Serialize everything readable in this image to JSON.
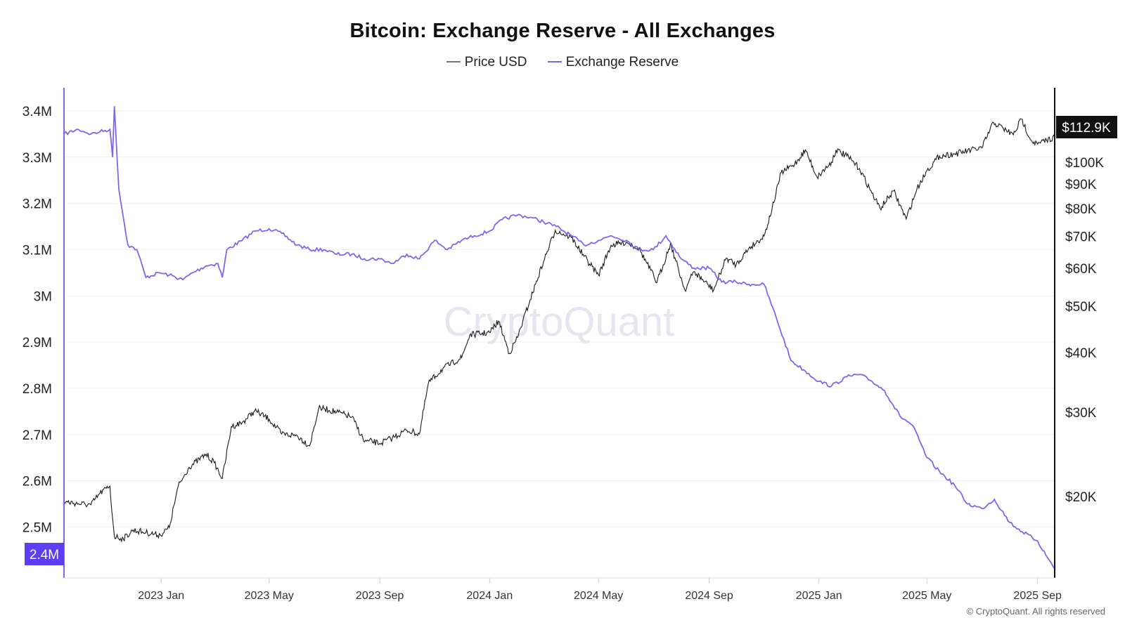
{
  "chart_data": {
    "type": "line",
    "title": "Bitcoin: Exchange Reserve - All Exchanges",
    "legend": [
      {
        "name": "Price USD",
        "color": "#555555"
      },
      {
        "name": "Exchange Reserve",
        "color": "#7b68ee"
      }
    ],
    "legend_placement": "top-center",
    "grid": true,
    "x_axis": {
      "type": "date",
      "ticks": [
        "2023 Jan",
        "2023 May",
        "2023 Sep",
        "2024 Jan",
        "2024 May",
        "2024 Sep",
        "2025 Jan",
        "2025 May",
        "2025 Sep"
      ],
      "range": [
        "2022-09-15",
        "2025-09-20"
      ]
    },
    "y_left": {
      "label": "",
      "ticks": [
        "3.4M",
        "3.3M",
        "3.2M",
        "3.1M",
        "3M",
        "2.9M",
        "2.8M",
        "2.7M",
        "2.6M",
        "2.5M"
      ],
      "range": [
        2390000,
        3450000
      ],
      "current_label": "2.4M"
    },
    "y_right": {
      "label": "",
      "scale": "log",
      "ticks": [
        "$100K",
        "$90K",
        "$80K",
        "$70K",
        "$60K",
        "$50K",
        "$40K",
        "$30K",
        "$20K"
      ],
      "current_label": "$112.9K"
    },
    "series": [
      {
        "name": "Exchange Reserve",
        "color": "#7b68ee",
        "axis": "left",
        "x": [
          "2022-09-15",
          "2022-10-01",
          "2022-10-15",
          "2022-10-25",
          "2022-11-05",
          "2022-11-08",
          "2022-11-10",
          "2022-11-15",
          "2022-11-25",
          "2022-12-05",
          "2022-12-15",
          "2022-12-30",
          "2023-01-10",
          "2023-01-25",
          "2023-02-05",
          "2023-02-20",
          "2023-03-05",
          "2023-03-10",
          "2023-03-15",
          "2023-04-01",
          "2023-04-15",
          "2023-05-01",
          "2023-05-15",
          "2023-06-01",
          "2023-06-15",
          "2023-07-01",
          "2023-07-15",
          "2023-08-01",
          "2023-08-15",
          "2023-09-01",
          "2023-09-15",
          "2023-10-01",
          "2023-10-15",
          "2023-11-01",
          "2023-11-15",
          "2023-12-01",
          "2023-12-15",
          "2024-01-01",
          "2024-01-15",
          "2024-02-01",
          "2024-02-15",
          "2024-03-01",
          "2024-03-15",
          "2024-04-01",
          "2024-04-15",
          "2024-05-01",
          "2024-05-15",
          "2024-06-01",
          "2024-06-15",
          "2024-07-01",
          "2024-07-15",
          "2024-08-01",
          "2024-08-15",
          "2024-09-01",
          "2024-09-15",
          "2024-10-01",
          "2024-10-15",
          "2024-11-01",
          "2024-11-15",
          "2024-12-01",
          "2024-12-15",
          "2025-01-01",
          "2025-01-15",
          "2025-02-01",
          "2025-02-15",
          "2025-03-01",
          "2025-03-15",
          "2025-04-01",
          "2025-04-15",
          "2025-05-01",
          "2025-05-15",
          "2025-06-01",
          "2025-06-15",
          "2025-07-01",
          "2025-07-15",
          "2025-08-01",
          "2025-08-15",
          "2025-09-01",
          "2025-09-10",
          "2025-09-20"
        ],
        "values": [
          3350000,
          3360000,
          3350000,
          3355000,
          3360000,
          3300000,
          3410000,
          3230000,
          3110000,
          3100000,
          3040000,
          3050000,
          3045000,
          3035000,
          3050000,
          3065000,
          3070000,
          3040000,
          3100000,
          3120000,
          3140000,
          3145000,
          3135000,
          3110000,
          3100000,
          3100000,
          3090000,
          3090000,
          3080000,
          3080000,
          3070000,
          3090000,
          3080000,
          3120000,
          3100000,
          3120000,
          3130000,
          3140000,
          3165000,
          3175000,
          3170000,
          3160000,
          3150000,
          3130000,
          3110000,
          3120000,
          3130000,
          3120000,
          3100000,
          3100000,
          3130000,
          3080000,
          3060000,
          3060000,
          3030000,
          3030000,
          3025000,
          3025000,
          2950000,
          2860000,
          2840000,
          2815000,
          2805000,
          2825000,
          2830000,
          2815000,
          2795000,
          2740000,
          2720000,
          2650000,
          2620000,
          2590000,
          2550000,
          2540000,
          2560000,
          2510000,
          2490000,
          2470000,
          2440000,
          2410000
        ]
      },
      {
        "name": "Price USD",
        "color": "#555555",
        "axis": "right",
        "x": [
          "2022-09-15",
          "2022-10-01",
          "2022-10-15",
          "2022-10-25",
          "2022-11-05",
          "2022-11-08",
          "2022-11-10",
          "2022-11-20",
          "2022-12-01",
          "2022-12-15",
          "2022-12-31",
          "2023-01-10",
          "2023-01-20",
          "2023-02-01",
          "2023-02-20",
          "2023-03-01",
          "2023-03-10",
          "2023-03-20",
          "2023-04-01",
          "2023-04-15",
          "2023-05-01",
          "2023-05-15",
          "2023-06-01",
          "2023-06-15",
          "2023-06-25",
          "2023-07-01",
          "2023-07-15",
          "2023-08-01",
          "2023-08-15",
          "2023-08-20",
          "2023-09-01",
          "2023-09-15",
          "2023-10-01",
          "2023-10-15",
          "2023-10-25",
          "2023-11-10",
          "2023-12-01",
          "2023-12-10",
          "2024-01-01",
          "2024-01-11",
          "2024-01-23",
          "2024-02-01",
          "2024-02-15",
          "2024-03-01",
          "2024-03-14",
          "2024-04-01",
          "2024-04-15",
          "2024-05-01",
          "2024-05-15",
          "2024-06-01",
          "2024-06-15",
          "2024-07-05",
          "2024-07-20",
          "2024-08-05",
          "2024-08-15",
          "2024-09-06",
          "2024-09-20",
          "2024-10-01",
          "2024-10-15",
          "2024-11-01",
          "2024-11-10",
          "2024-11-20",
          "2024-12-05",
          "2024-12-17",
          "2024-12-30",
          "2025-01-15",
          "2025-01-20",
          "2025-02-01",
          "2025-02-15",
          "2025-03-01",
          "2025-03-10",
          "2025-03-25",
          "2025-04-08",
          "2025-04-20",
          "2025-05-01",
          "2025-05-15",
          "2025-06-01",
          "2025-06-15",
          "2025-07-01",
          "2025-07-14",
          "2025-07-25",
          "2025-08-05",
          "2025-08-14",
          "2025-08-25",
          "2025-09-01",
          "2025-09-20"
        ],
        "values": [
          19500,
          19300,
          19200,
          20300,
          21000,
          18000,
          16500,
          16300,
          17000,
          16800,
          16600,
          17200,
          21000,
          23000,
          24500,
          23500,
          21800,
          28000,
          28500,
          30200,
          29000,
          27000,
          26800,
          25500,
          30500,
          30500,
          30000,
          29300,
          26000,
          26100,
          25800,
          26500,
          27500,
          27000,
          34500,
          37000,
          39000,
          43500,
          44000,
          46500,
          39800,
          43000,
          51500,
          62000,
          72000,
          69500,
          63500,
          58000,
          67000,
          68000,
          66000,
          56000,
          67500,
          54000,
          59000,
          54000,
          63000,
          61000,
          66000,
          70000,
          80000,
          95000,
          99000,
          106000,
          93000,
          100000,
          106000,
          103000,
          97000,
          86000,
          80000,
          87000,
          76000,
          88000,
          96000,
          103000,
          104000,
          105500,
          107000,
          121000,
          117500,
          114000,
          123000,
          111000,
          109000,
          112900
        ]
      }
    ]
  },
  "watermark": "CryptoQuant",
  "copyright": "© CryptoQuant. All rights reserved"
}
